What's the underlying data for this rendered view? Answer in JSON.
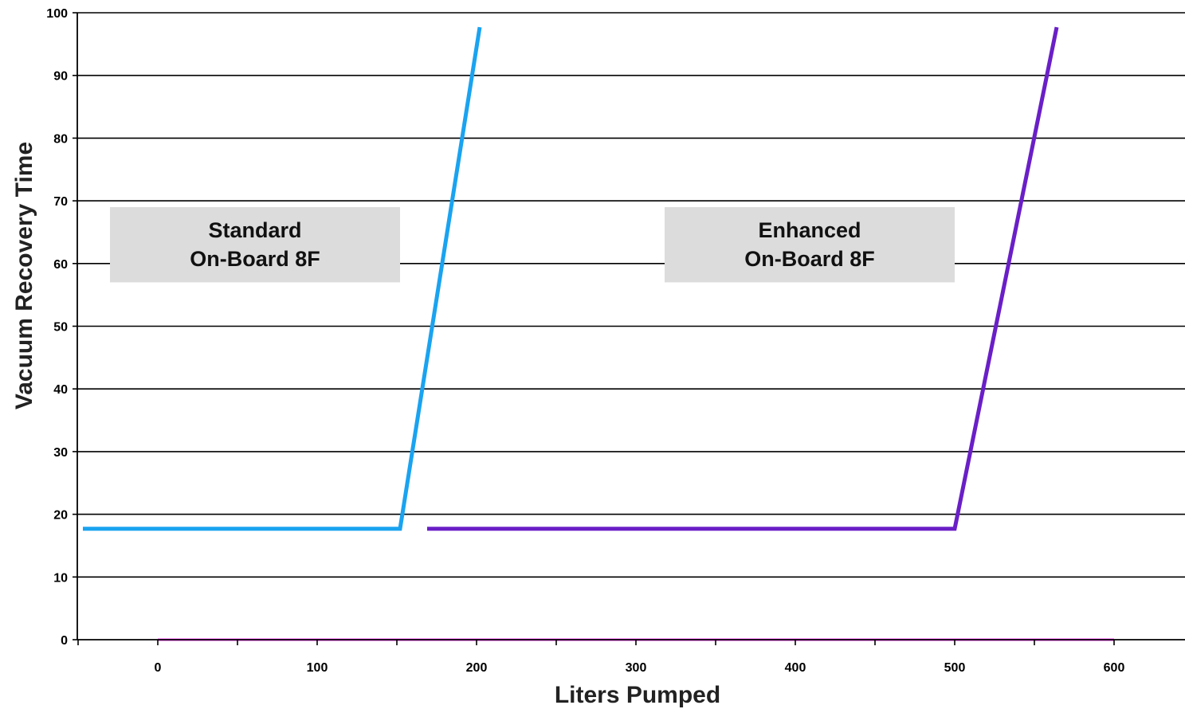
{
  "chart_data": {
    "type": "line",
    "title": "",
    "xlabel": "Liters Pumped",
    "ylabel": "Vacuum Recovery Time",
    "xlim": [
      -50,
      640
    ],
    "ylim": [
      0,
      100
    ],
    "x_ticks": [
      0,
      100,
      200,
      300,
      400,
      500,
      600
    ],
    "y_ticks": [
      0,
      10,
      20,
      30,
      40,
      50,
      60,
      70,
      80,
      90,
      100
    ],
    "grid": "horizontal",
    "series": [
      {
        "color": "#1aa3f0",
        "points": [
          [
            -47,
            17.7
          ],
          [
            152,
            17.7
          ],
          [
            202,
            97.7
          ]
        ]
      },
      {
        "color": "#6a1fc7",
        "points": [
          [
            169,
            17.7
          ],
          [
            500,
            17.7
          ],
          [
            564,
            97.7
          ]
        ]
      }
    ],
    "baseline": {
      "color": "#ff33ff",
      "points": [
        [
          0,
          0
        ],
        [
          600,
          0
        ]
      ]
    },
    "annotations": [
      {
        "lines": [
          "Standard",
          "On-Board 8F"
        ],
        "box_color": "#dcdcdc",
        "x_range": [
          -30,
          152
        ],
        "y_range": [
          57,
          69
        ]
      },
      {
        "lines": [
          "Enhanced",
          "On-Board 8F"
        ],
        "box_color": "#dcdcdc",
        "x_range": [
          318,
          500
        ],
        "y_range": [
          57,
          69
        ]
      }
    ]
  }
}
